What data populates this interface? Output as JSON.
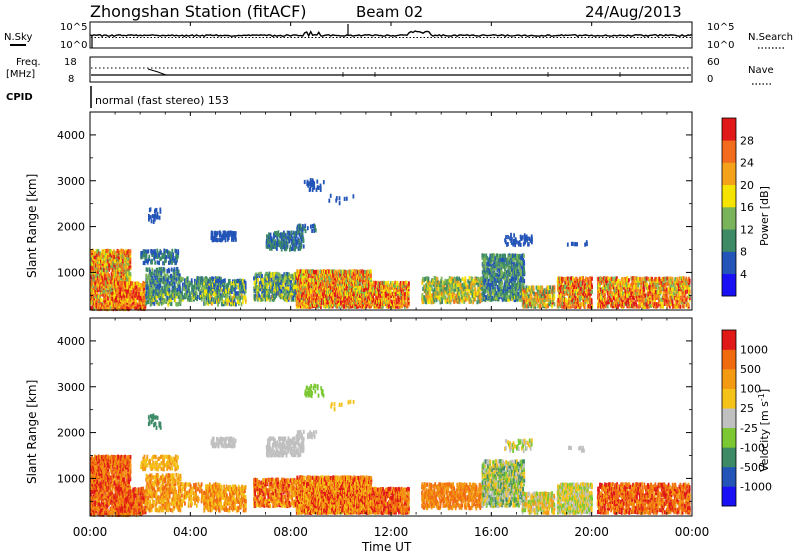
{
  "header": {
    "station": "Zhongshan Station (fitACF)",
    "beam": "Beam 02",
    "date": "24/Aug/2013"
  },
  "panels": {
    "nsky_label": "N.Sky",
    "nsky_ticks": [
      "10^5",
      "10^0"
    ],
    "nsearch_label": "N.Search",
    "nsearch_ticks": [
      "10^5",
      "10^0"
    ],
    "freq_label_1": "Freq.",
    "freq_label_2": "[MHz]",
    "freq_ticks": [
      "18",
      "8"
    ],
    "nave_label": "Nave",
    "nave_ticks": [
      "60",
      "0"
    ],
    "cpid_label": "CPID",
    "cpid_text": "normal (fast stereo) 153"
  },
  "chart_data": [
    {
      "type": "heatmap",
      "name": "power",
      "ylabel": "Slant Range [km]",
      "xlabel": "",
      "ylim": [
        180,
        4500
      ],
      "yticks": [
        "1000",
        "2000",
        "3000",
        "4000"
      ],
      "colorbar_label": "Power [dB]",
      "colorbar_ticks": [
        "28",
        "24",
        "20",
        "16",
        "12",
        "8",
        "4"
      ],
      "colors": [
        "#1a10f5",
        "#2354b8",
        "#3c8a66",
        "#7ab45a",
        "#f4e400",
        "#f5a21a",
        "#f36b1d",
        "#e01818"
      ]
    },
    {
      "type": "heatmap",
      "name": "velocity",
      "ylabel": "Slant Range [km]",
      "xlabel": "Time UT",
      "ylim": [
        180,
        4500
      ],
      "yticks": [
        "1000",
        "2000",
        "3000",
        "4000"
      ],
      "colorbar_label": "Velocity [m s^-1]",
      "colorbar_ticks": [
        "1000",
        "500",
        "100",
        "25",
        "-25",
        "-100",
        "-500",
        "-1000"
      ],
      "colors": [
        "#1a10f5",
        "#2354b8",
        "#3c8a66",
        "#7cc832",
        "#c0c0c0",
        "#f5c21a",
        "#f39a12",
        "#f06a10",
        "#e01818"
      ]
    }
  ],
  "time_axis": {
    "label": "Time UT",
    "ticks": [
      "00:00",
      "04:00",
      "08:00",
      "12:00",
      "16:00",
      "20:00",
      "00:00"
    ]
  }
}
